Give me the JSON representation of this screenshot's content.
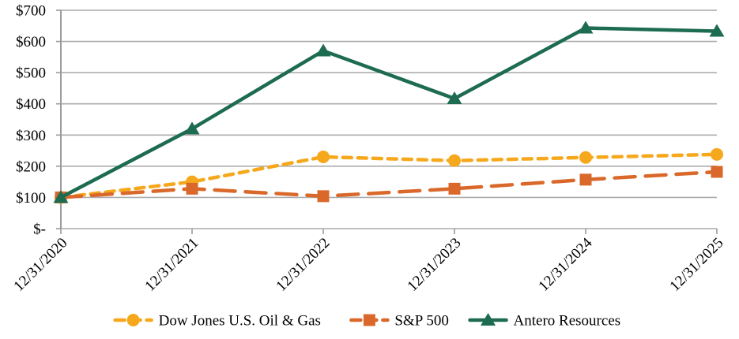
{
  "chart_data": {
    "type": "line",
    "title": "",
    "xlabel": "",
    "ylabel": "",
    "categories": [
      "12/31/2020",
      "12/31/2021",
      "12/31/2022",
      "12/31/2023",
      "12/31/2024",
      "12/31/2025"
    ],
    "series": [
      {
        "name": "Dow Jones U.S. Oil & Gas",
        "values": [
          100,
          150,
          230,
          218,
          228,
          238
        ],
        "color": "#F6A81C",
        "marker": "circle",
        "line_style": "dashed"
      },
      {
        "name": "S&P 500",
        "values": [
          100,
          128,
          104,
          128,
          157,
          182
        ],
        "color": "#D9682A",
        "marker": "square",
        "line_style": "long-dash"
      },
      {
        "name": "Antero Resources",
        "values": [
          100,
          320,
          570,
          417,
          643,
          633
        ],
        "color": "#1D6B51",
        "marker": "triangle",
        "line_style": "solid"
      }
    ],
    "y_ticks": [
      {
        "value": 700,
        "label": "$700"
      },
      {
        "value": 600,
        "label": "$600"
      },
      {
        "value": 500,
        "label": "$500"
      },
      {
        "value": 400,
        "label": "$400"
      },
      {
        "value": 300,
        "label": "$300"
      },
      {
        "value": 200,
        "label": "$200"
      },
      {
        "value": 100,
        "label": "$100"
      },
      {
        "value": 0,
        "label": "$-"
      }
    ],
    "ylim": [
      0,
      700
    ],
    "grid": true,
    "legend_position": "bottom",
    "colors": {
      "gridline": "#ACACAC",
      "axis": "#9B9B9B",
      "text": "#000000",
      "background": "#FFFFFF"
    }
  }
}
